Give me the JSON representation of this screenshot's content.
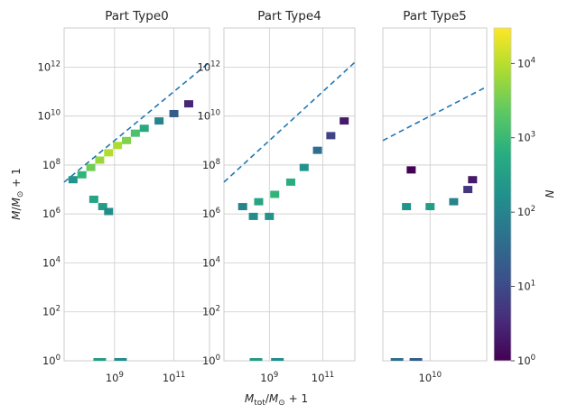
{
  "chart_data": [
    {
      "type": "heatmap",
      "title": "Part Type0",
      "xlabel": "",
      "ylabel": "M/M_⊙ + 1",
      "xscale": "log",
      "yscale": "log",
      "xlim": [
        7.3,
        12.2
      ],
      "ylim": [
        0,
        13.6
      ],
      "xticks": [
        9,
        11
      ],
      "yticks": [
        0,
        2,
        4,
        6,
        8,
        10,
        12
      ],
      "grid": true,
      "reference_line": {
        "style": "dashed",
        "slope": 1,
        "intercept": 0,
        "color": "#1f77b4"
      },
      "bins": [
        {
          "x": 7.6,
          "y": 7.4,
          "n": 200
        },
        {
          "x": 7.9,
          "y": 7.6,
          "n": 800
        },
        {
          "x": 8.2,
          "y": 7.9,
          "n": 3000
        },
        {
          "x": 8.5,
          "y": 8.2,
          "n": 6000
        },
        {
          "x": 8.8,
          "y": 8.5,
          "n": 9000
        },
        {
          "x": 9.1,
          "y": 8.8,
          "n": 8000
        },
        {
          "x": 9.4,
          "y": 9.0,
          "n": 4000
        },
        {
          "x": 9.7,
          "y": 9.3,
          "n": 1500
        },
        {
          "x": 10.0,
          "y": 9.5,
          "n": 500
        },
        {
          "x": 10.5,
          "y": 9.8,
          "n": 100
        },
        {
          "x": 11.0,
          "y": 10.1,
          "n": 20
        },
        {
          "x": 11.5,
          "y": 10.5,
          "n": 3
        },
        {
          "x": 8.3,
          "y": 6.6,
          "n": 400
        },
        {
          "x": 8.6,
          "y": 6.3,
          "n": 300
        },
        {
          "x": 8.8,
          "y": 6.1,
          "n": 150
        },
        {
          "x": 8.5,
          "y": 0.0,
          "n": 300
        },
        {
          "x": 9.2,
          "y": 0.0,
          "n": 150
        }
      ]
    },
    {
      "type": "heatmap",
      "title": "Part Type4",
      "xlabel": "M_tot/M_⊙ + 1",
      "ylabel": "",
      "xscale": "log",
      "yscale": "log",
      "xlim": [
        7.3,
        12.2
      ],
      "ylim": [
        0,
        13.6
      ],
      "xticks": [
        9,
        11
      ],
      "yticks": [
        0,
        2,
        4,
        6,
        8,
        10,
        12
      ],
      "grid": true,
      "reference_line": {
        "style": "dashed",
        "slope": 1,
        "intercept": 0,
        "color": "#1f77b4"
      },
      "bins": [
        {
          "x": 8.0,
          "y": 6.3,
          "n": 100
        },
        {
          "x": 8.6,
          "y": 6.5,
          "n": 400
        },
        {
          "x": 9.2,
          "y": 6.8,
          "n": 800
        },
        {
          "x": 9.8,
          "y": 7.3,
          "n": 600
        },
        {
          "x": 10.3,
          "y": 7.9,
          "n": 200
        },
        {
          "x": 10.8,
          "y": 8.6,
          "n": 40
        },
        {
          "x": 11.3,
          "y": 9.2,
          "n": 8
        },
        {
          "x": 11.8,
          "y": 9.8,
          "n": 2
        },
        {
          "x": 8.4,
          "y": 5.9,
          "n": 150
        },
        {
          "x": 9.0,
          "y": 5.9,
          "n": 200
        },
        {
          "x": 8.5,
          "y": 0.0,
          "n": 300
        },
        {
          "x": 9.3,
          "y": 0.0,
          "n": 150
        }
      ]
    },
    {
      "type": "heatmap",
      "title": "Part Type5",
      "xlabel": "",
      "ylabel": "",
      "xscale": "log",
      "yscale": "log",
      "xlim": [
        9.0,
        11.2
      ],
      "ylim": [
        0,
        13.6
      ],
      "xticks": [
        10
      ],
      "yticks": [
        0,
        2,
        4,
        6,
        8,
        10,
        12
      ],
      "grid": true,
      "reference_line": {
        "style": "dashed",
        "slope": 1,
        "intercept": 0,
        "color": "#1f77b4"
      },
      "bins": [
        {
          "x": 9.5,
          "y": 6.3,
          "n": 200
        },
        {
          "x": 10.0,
          "y": 6.3,
          "n": 300
        },
        {
          "x": 10.5,
          "y": 6.5,
          "n": 100
        },
        {
          "x": 10.8,
          "y": 7.0,
          "n": 5
        },
        {
          "x": 10.9,
          "y": 7.4,
          "n": 2
        },
        {
          "x": 9.6,
          "y": 7.8,
          "n": 1
        },
        {
          "x": 9.3,
          "y": 0.0,
          "n": 40
        },
        {
          "x": 9.7,
          "y": 0.0,
          "n": 20
        }
      ]
    }
  ],
  "colorbar": {
    "label": "N",
    "scale": "log",
    "range": [
      1,
      30000
    ],
    "ticks": [
      "10^0",
      "10^1",
      "10^2",
      "10^3",
      "10^4"
    ],
    "colormap": "viridis"
  }
}
